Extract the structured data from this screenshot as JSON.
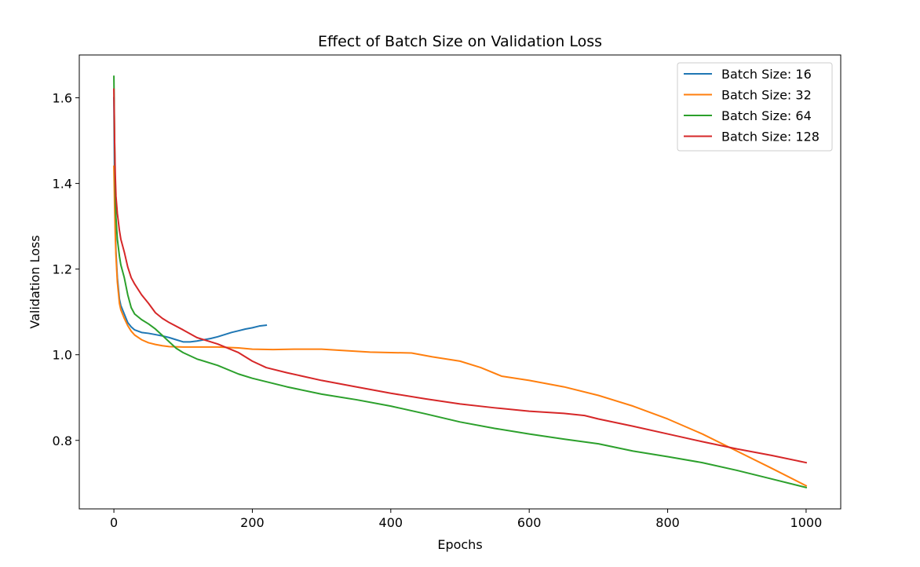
{
  "chart_data": {
    "type": "line",
    "title": "Effect of Batch Size on Validation Loss",
    "xlabel": "Epochs",
    "ylabel": "Validation Loss",
    "xlim": [
      -50,
      1050
    ],
    "ylim": [
      0.64,
      1.7
    ],
    "xticks": [
      0,
      200,
      400,
      600,
      800,
      1000
    ],
    "xtick_labels": [
      "0",
      "200",
      "400",
      "600",
      "800",
      "1000"
    ],
    "yticks": [
      0.8,
      1.0,
      1.2,
      1.4,
      1.6
    ],
    "ytick_labels": [
      "0.8",
      "1.0",
      "1.2",
      "1.4",
      "1.6"
    ],
    "grid": false,
    "legend_position": "top-right",
    "series": [
      {
        "name": "Batch Size: 16",
        "color": "#1f77b4",
        "x": [
          0,
          1,
          2,
          3,
          5,
          8,
          10,
          15,
          20,
          25,
          30,
          40,
          50,
          60,
          70,
          80,
          90,
          100,
          110,
          120,
          130,
          140,
          150,
          160,
          170,
          180,
          190,
          200,
          210,
          220
        ],
        "y": [
          1.6,
          1.4,
          1.3,
          1.24,
          1.18,
          1.13,
          1.115,
          1.095,
          1.075,
          1.065,
          1.058,
          1.052,
          1.05,
          1.047,
          1.044,
          1.04,
          1.035,
          1.03,
          1.03,
          1.032,
          1.035,
          1.038,
          1.042,
          1.047,
          1.052,
          1.056,
          1.06,
          1.063,
          1.067,
          1.069
        ]
      },
      {
        "name": "Batch Size: 32",
        "color": "#ff7f0e",
        "x": [
          0,
          1,
          2,
          3,
          5,
          8,
          10,
          15,
          20,
          25,
          30,
          40,
          50,
          60,
          70,
          80,
          100,
          120,
          150,
          180,
          200,
          230,
          260,
          300,
          330,
          370,
          400,
          430,
          460,
          500,
          530,
          560,
          600,
          650,
          700,
          750,
          800,
          850,
          900,
          950,
          1000
        ],
        "y": [
          1.44,
          1.35,
          1.28,
          1.23,
          1.17,
          1.12,
          1.105,
          1.085,
          1.068,
          1.055,
          1.046,
          1.035,
          1.028,
          1.024,
          1.021,
          1.019,
          1.018,
          1.018,
          1.018,
          1.016,
          1.013,
          1.012,
          1.013,
          1.013,
          1.01,
          1.006,
          1.005,
          1.004,
          0.995,
          0.985,
          0.97,
          0.95,
          0.94,
          0.925,
          0.905,
          0.88,
          0.85,
          0.815,
          0.775,
          0.735,
          0.694
        ]
      },
      {
        "name": "Batch Size: 64",
        "color": "#2ca02c",
        "x": [
          0,
          1,
          2,
          3,
          5,
          8,
          10,
          15,
          20,
          25,
          30,
          40,
          50,
          60,
          70,
          80,
          90,
          100,
          120,
          150,
          180,
          200,
          250,
          300,
          350,
          400,
          450,
          500,
          550,
          600,
          650,
          700,
          750,
          800,
          850,
          900,
          950,
          1000
        ],
        "y": [
          1.65,
          1.5,
          1.38,
          1.32,
          1.27,
          1.23,
          1.21,
          1.18,
          1.14,
          1.11,
          1.095,
          1.082,
          1.072,
          1.06,
          1.045,
          1.03,
          1.015,
          1.005,
          0.99,
          0.975,
          0.955,
          0.945,
          0.925,
          0.908,
          0.895,
          0.88,
          0.862,
          0.843,
          0.828,
          0.815,
          0.803,
          0.792,
          0.775,
          0.762,
          0.748,
          0.73,
          0.71,
          0.69
        ]
      },
      {
        "name": "Batch Size: 128",
        "color": "#d62728",
        "x": [
          0,
          1,
          2,
          3,
          5,
          8,
          10,
          15,
          20,
          25,
          30,
          40,
          50,
          60,
          70,
          80,
          100,
          120,
          150,
          180,
          200,
          220,
          250,
          300,
          350,
          400,
          450,
          500,
          550,
          600,
          650,
          680,
          700,
          750,
          800,
          850,
          900,
          950,
          1000
        ],
        "y": [
          1.62,
          1.5,
          1.42,
          1.37,
          1.33,
          1.29,
          1.27,
          1.24,
          1.205,
          1.18,
          1.165,
          1.14,
          1.12,
          1.098,
          1.085,
          1.075,
          1.058,
          1.04,
          1.025,
          1.005,
          0.985,
          0.97,
          0.958,
          0.94,
          0.925,
          0.91,
          0.897,
          0.885,
          0.876,
          0.868,
          0.863,
          0.858,
          0.85,
          0.833,
          0.815,
          0.797,
          0.78,
          0.765,
          0.748
        ]
      }
    ]
  }
}
